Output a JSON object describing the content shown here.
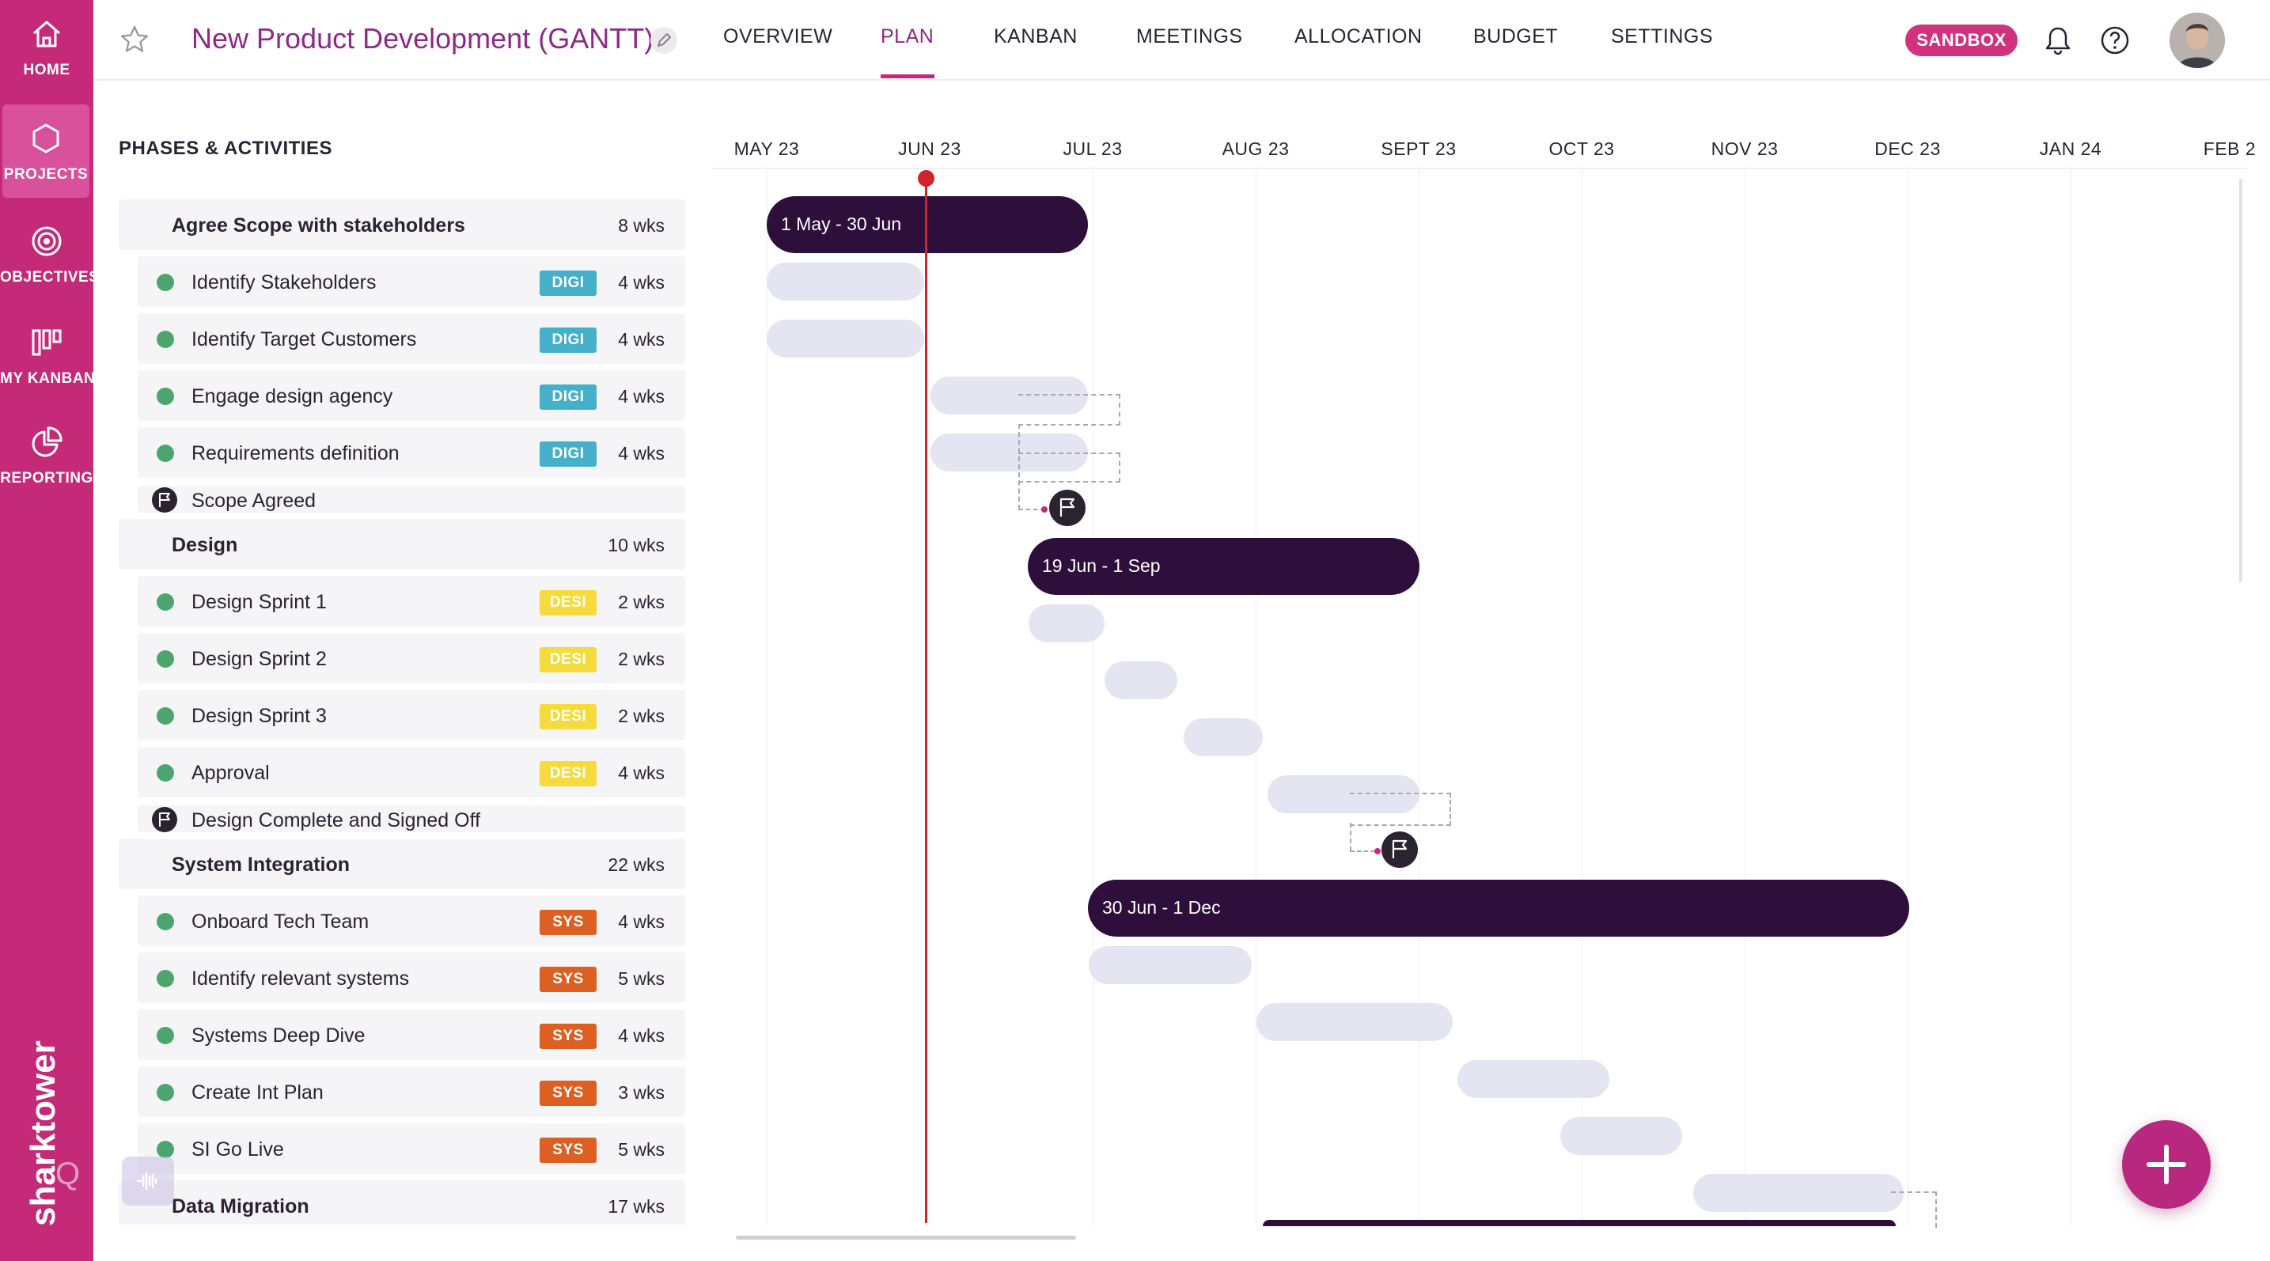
{
  "app": {
    "brand": "sharktower",
    "overlay_label": "Q"
  },
  "sidebar": {
    "items": [
      {
        "label": "HOME",
        "icon": "home-icon"
      },
      {
        "label": "PROJECTS",
        "icon": "hexagon-icon"
      },
      {
        "label": "OBJECTIVES",
        "icon": "target-icon"
      },
      {
        "label": "MY KANBAN",
        "icon": "kanban-icon"
      },
      {
        "label": "REPORTING",
        "icon": "pie-chart-icon"
      }
    ],
    "active": "PROJECTS"
  },
  "header": {
    "title": "New Product Development (GANTT)",
    "tabs": [
      "OVERVIEW",
      "PLAN",
      "KANBAN",
      "MEETINGS",
      "ALLOCATION",
      "BUDGET",
      "SETTINGS"
    ],
    "active_tab": "PLAN",
    "badge": "SANDBOX"
  },
  "gantt": {
    "section_title": "PHASES & ACTIVITIES",
    "months": [
      "MAY 23",
      "JUN 23",
      "JUL 23",
      "AUG 23",
      "SEPT 23",
      "OCT 23",
      "NOV 23",
      "DEC 23",
      "JAN 24",
      "FEB 2"
    ],
    "rows": [
      {
        "type": "phase",
        "name": "Agree Scope with stakeholders",
        "duration": "8 wks",
        "bar_label": "1 May - 30 Jun"
      },
      {
        "type": "activity",
        "name": "Identify Stakeholders",
        "tag": "DIGI",
        "duration": "4 wks"
      },
      {
        "type": "activity",
        "name": "Identify Target Customers",
        "tag": "DIGI",
        "duration": "4 wks"
      },
      {
        "type": "activity",
        "name": "Engage design agency",
        "tag": "DIGI",
        "duration": "4 wks"
      },
      {
        "type": "activity",
        "name": "Requirements definition",
        "tag": "DIGI",
        "duration": "4 wks"
      },
      {
        "type": "milestone",
        "name": "Scope Agreed"
      },
      {
        "type": "phase",
        "name": "Design",
        "duration": "10 wks",
        "bar_label": "19 Jun - 1 Sep"
      },
      {
        "type": "activity",
        "name": "Design Sprint 1",
        "tag": "DESI",
        "duration": "2 wks"
      },
      {
        "type": "activity",
        "name": "Design Sprint 2",
        "tag": "DESI",
        "duration": "2 wks"
      },
      {
        "type": "activity",
        "name": "Design Sprint 3",
        "tag": "DESI",
        "duration": "2 wks"
      },
      {
        "type": "activity",
        "name": "Approval",
        "tag": "DESI",
        "duration": "4 wks"
      },
      {
        "type": "milestone",
        "name": "Design Complete and Signed Off"
      },
      {
        "type": "phase",
        "name": "System Integration",
        "duration": "22 wks",
        "bar_label": "30 Jun - 1 Dec"
      },
      {
        "type": "activity",
        "name": "Onboard Tech Team",
        "tag": "SYS",
        "duration": "4 wks"
      },
      {
        "type": "activity",
        "name": "Identify relevant systems",
        "tag": "SYS",
        "duration": "5 wks"
      },
      {
        "type": "activity",
        "name": "Systems Deep Dive",
        "tag": "SYS",
        "duration": "4 wks"
      },
      {
        "type": "activity",
        "name": "Create Int Plan",
        "tag": "SYS",
        "duration": "3 wks"
      },
      {
        "type": "activity",
        "name": "SI Go Live",
        "tag": "SYS",
        "duration": "5 wks"
      },
      {
        "type": "phase",
        "name": "Data Migration",
        "duration": "17 wks"
      }
    ]
  },
  "colors": {
    "sidebar": "#c42a78",
    "title": "#8d2a87",
    "phase_bar": "#2e0e3a",
    "activity_bar": "#e5e5f1",
    "status_dot": "#4ca56e",
    "tag_DIGI": "#45b0c9",
    "tag_DESI": "#f5dc3c",
    "tag_SYS": "#dd5f22",
    "today_line": "#d0242a"
  }
}
